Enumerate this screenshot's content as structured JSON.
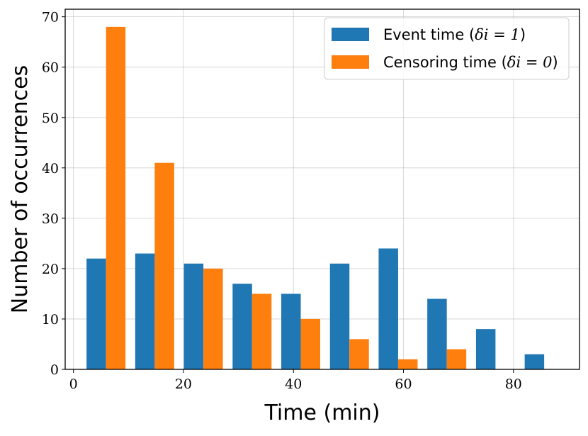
{
  "chart_data": {
    "type": "bar",
    "title": "",
    "xlabel": "Time (min)",
    "ylabel": "Number of occurrences",
    "xlim": [
      -1.5,
      92
    ],
    "ylim": [
      0,
      71.5
    ],
    "xticks": [
      0,
      20,
      40,
      60,
      80
    ],
    "yticks": [
      0,
      10,
      20,
      30,
      40,
      50,
      60,
      70
    ],
    "grid": true,
    "legend_position": "top-right",
    "bin_edges": [
      1.5,
      10.35,
      19.2,
      28.05,
      36.9,
      45.75,
      54.6,
      63.45,
      72.3,
      81.15,
      90.0
    ],
    "series": [
      {
        "name": "Event time",
        "legend_math": "δi = 1",
        "color": "#1f77b4",
        "values": [
          22,
          23,
          21,
          17,
          15,
          21,
          24,
          14,
          8,
          3
        ]
      },
      {
        "name": "Censoring time",
        "legend_math": "δi = 0",
        "color": "#ff7f0e",
        "values": [
          68,
          41,
          20,
          15,
          10,
          6,
          2,
          4,
          0,
          0
        ]
      }
    ]
  }
}
